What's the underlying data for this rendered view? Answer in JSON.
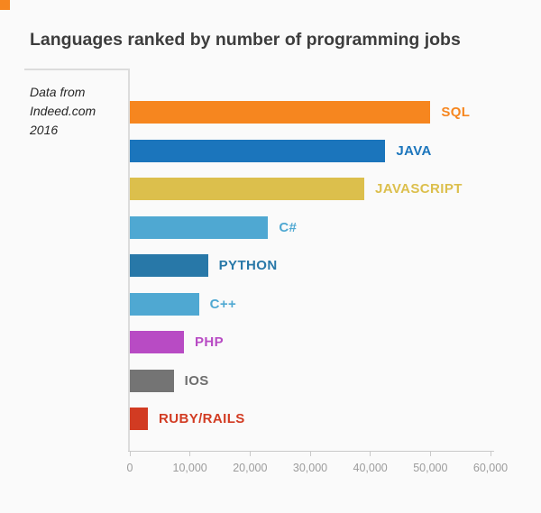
{
  "page": {
    "background": "#FAFAFA",
    "accent_color": "#F6861F"
  },
  "annotation": {
    "lines": [
      "Data from",
      "Indeed.com",
      "2016"
    ]
  },
  "chart_data": {
    "type": "bar",
    "orientation": "horizontal",
    "title": "Languages ranked by number of programming jobs",
    "categories": [
      "SQL",
      "JAVA",
      "JAVASCRIPT",
      "C#",
      "PYTHON",
      "C++",
      "PHP",
      "IOS",
      "RUBY/RAILS"
    ],
    "values": [
      50000,
      42500,
      39000,
      23000,
      13000,
      11500,
      9000,
      7300,
      3000
    ],
    "bar_colors": [
      "#F6861F",
      "#1B75BC",
      "#DCBF4C",
      "#4FA8D2",
      "#2878A8",
      "#4FA8D2",
      "#B84BC4",
      "#747474",
      "#D23B22"
    ],
    "label_colors": [
      "#F6861F",
      "#1B75BC",
      "#DCBF4C",
      "#4FA8D2",
      "#2878A8",
      "#4FA8D2",
      "#B84BC4",
      "#6E6E6E",
      "#D23B22"
    ],
    "xlabel": "",
    "ylabel": "",
    "xlim": [
      0,
      60000
    ],
    "x_ticks": [
      "0",
      "10,000",
      "20,000",
      "30,000",
      "40,000",
      "50,000",
      "60,000"
    ],
    "x_tick_values": [
      0,
      10000,
      20000,
      30000,
      40000,
      50000,
      60000
    ],
    "grid": false,
    "legend": "none",
    "value_labels_position": "right-of-bar",
    "source_note": "Data from Indeed.com 2016"
  }
}
